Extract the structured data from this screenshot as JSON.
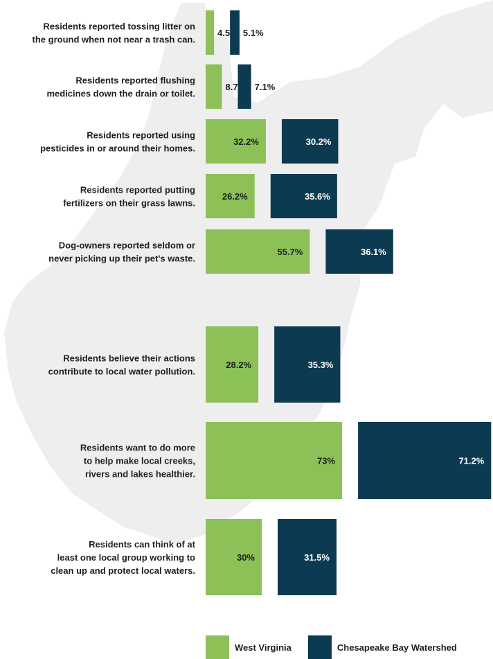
{
  "colors": {
    "west_virginia": "#8bc157",
    "chesapeake": "#0b3a51",
    "map_silhouette": "#eeeeee",
    "label_dark": "#1f1f1f",
    "label_light": "#ffffff"
  },
  "chart_data": {
    "type": "bar",
    "orientation": "horizontal",
    "title": "",
    "xlabel": "",
    "ylabel": "",
    "value_suffix": "%",
    "categories": [
      [
        "Residents reported tossing litter on",
        "the ground when not near a trash can."
      ],
      [
        "Residents reported flushing",
        "medicines down the drain or toilet."
      ],
      [
        "Residents reported using",
        "pesticides in or around their homes."
      ],
      [
        "Residents reported putting",
        "fertilizers on their grass lawns."
      ],
      [
        "Dog-owners reported seldom or",
        "never picking up their pet's waste."
      ],
      [
        "Residents believe their actions",
        "contribute to local water pollution."
      ],
      [
        "Residents want to do more",
        "to help make local creeks,",
        "rivers and lakes healthier."
      ],
      [
        "Residents can think of at",
        "least one local group working to",
        "clean up and protect local waters."
      ]
    ],
    "series": [
      {
        "name": "West Virginia",
        "values": [
          4.5,
          8.7,
          32.2,
          26.2,
          55.7,
          28.2,
          73,
          30
        ],
        "labels": [
          "4.5%",
          "8.7%",
          "32.2%",
          "26.2%",
          "55.7%",
          "28.2%",
          "73%",
          "30%"
        ]
      },
      {
        "name": "Chesapeake Bay Watershed",
        "values": [
          5.1,
          7.1,
          30.2,
          35.6,
          36.1,
          35.3,
          71.2,
          31.5
        ],
        "labels": [
          "5.1%",
          "7.1%",
          "30.2%",
          "35.6%",
          "36.1%",
          "35.3%",
          "71.2%",
          "31.5%"
        ]
      }
    ],
    "legend_position": "bottom",
    "grid": false
  }
}
